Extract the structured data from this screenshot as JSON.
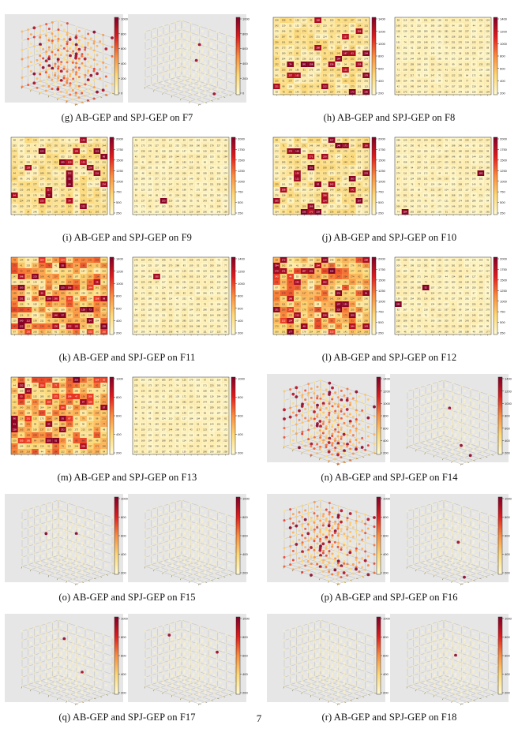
{
  "page": {
    "number": "7"
  },
  "panels": [
    {
      "id": "g",
      "caption": "(g) AB-GEP and SPJ-GEP on F7",
      "plot_kind": "cube",
      "ticks": [
        "1000",
        "800",
        "600",
        "400",
        "200",
        "0"
      ],
      "left_intensity": "high",
      "right_intensity": "low"
    },
    {
      "id": "h",
      "caption": "(h) AB-GEP and SPJ-GEP on F8",
      "plot_kind": "heatmap",
      "ticks": [
        "1400",
        "1200",
        "1000",
        "800",
        "600",
        "400",
        "200"
      ],
      "left_intensity": "medium",
      "right_intensity": "low"
    },
    {
      "id": "i",
      "caption": "(i) AB-GEP and SPJ-GEP on F9",
      "plot_kind": "heatmap",
      "ticks": [
        "2000",
        "1750",
        "1500",
        "1250",
        "1000",
        "750",
        "500",
        "250"
      ],
      "left_intensity": "medium",
      "right_intensity": "low"
    },
    {
      "id": "j",
      "caption": "(j) AB-GEP and SPJ-GEP on F10",
      "plot_kind": "heatmap",
      "ticks": [
        "2000",
        "1750",
        "1500",
        "1250",
        "1000",
        "750",
        "500",
        "250"
      ],
      "left_intensity": "medium",
      "right_intensity": "low"
    },
    {
      "id": "k",
      "caption": "(k) AB-GEP and SPJ-GEP on F11",
      "plot_kind": "heatmap",
      "ticks": [
        "1400",
        "1200",
        "1000",
        "800",
        "600",
        "400",
        "200"
      ],
      "left_intensity": "high",
      "right_intensity": "low"
    },
    {
      "id": "l",
      "caption": "(l) AB-GEP and SPJ-GEP on F12",
      "plot_kind": "heatmap",
      "ticks": [
        "2000",
        "1750",
        "1500",
        "1250",
        "1000",
        "750",
        "500",
        "250"
      ],
      "left_intensity": "high",
      "right_intensity": "low"
    },
    {
      "id": "m",
      "caption": "(m) AB-GEP and SPJ-GEP on F13",
      "plot_kind": "heatmap",
      "ticks": [
        "1000",
        "800",
        "600",
        "400",
        "200"
      ],
      "left_intensity": "high",
      "right_intensity": "low"
    },
    {
      "id": "n",
      "caption": "(n) AB-GEP and SPJ-GEP on F14",
      "plot_kind": "cube",
      "ticks": [
        "1400",
        "1200",
        "1000",
        "800",
        "600",
        "400",
        "200"
      ],
      "left_intensity": "high",
      "right_intensity": "low"
    },
    {
      "id": "o",
      "caption": "(o) AB-GEP and SPJ-GEP on F15",
      "plot_kind": "cube",
      "ticks": [
        "1000",
        "800",
        "600",
        "400",
        "200"
      ],
      "left_intensity": "low",
      "right_intensity": "low"
    },
    {
      "id": "p",
      "caption": "(p) AB-GEP and SPJ-GEP on F16",
      "plot_kind": "cube",
      "ticks": [
        "1000",
        "800",
        "600",
        "400",
        "200"
      ],
      "left_intensity": "high",
      "right_intensity": "low"
    },
    {
      "id": "q",
      "caption": "(q) AB-GEP and SPJ-GEP on F17",
      "plot_kind": "cube",
      "ticks": [
        "1000",
        "800",
        "600",
        "400",
        "200"
      ],
      "left_intensity": "low",
      "right_intensity": "low"
    },
    {
      "id": "r",
      "caption": "(r) AB-GEP and SPJ-GEP on F18",
      "plot_kind": "cube",
      "ticks": [
        "1000",
        "800",
        "600",
        "400",
        "200"
      ],
      "left_intensity": "low",
      "right_intensity": "low"
    }
  ]
}
